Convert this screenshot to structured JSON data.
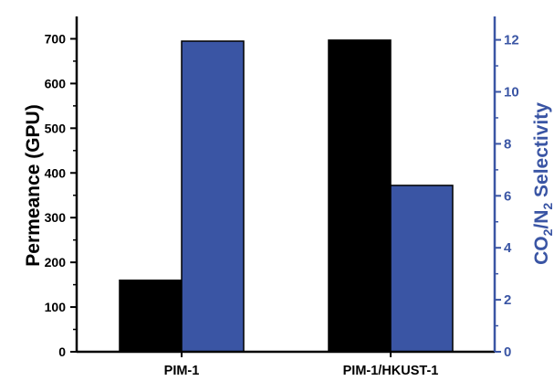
{
  "chart_data": {
    "type": "bar",
    "categories": [
      "PIM-1",
      "PIM-1/HKUST-1"
    ],
    "series": [
      {
        "axis": "left",
        "color": "#000000",
        "values": [
          160,
          697
        ]
      },
      {
        "axis": "right",
        "color": "#3a55a4",
        "values": [
          11.95,
          6.4
        ]
      }
    ],
    "y_left": {
      "label": "Permeance (GPU)",
      "ylim": [
        0,
        750
      ],
      "ticks": [
        "0",
        "100",
        "200",
        "300",
        "400",
        "500",
        "600",
        "700"
      ],
      "color": "#000000"
    },
    "y_right": {
      "label_parts": [
        "CO",
        "2",
        "/N",
        "2",
        " Selectivity"
      ],
      "ylim": [
        0,
        12.9
      ],
      "ticks": [
        "0",
        "2",
        "4",
        "6",
        "8",
        "10",
        "12"
      ],
      "color": "#3a55a4"
    },
    "grid": false,
    "legend": "none"
  }
}
